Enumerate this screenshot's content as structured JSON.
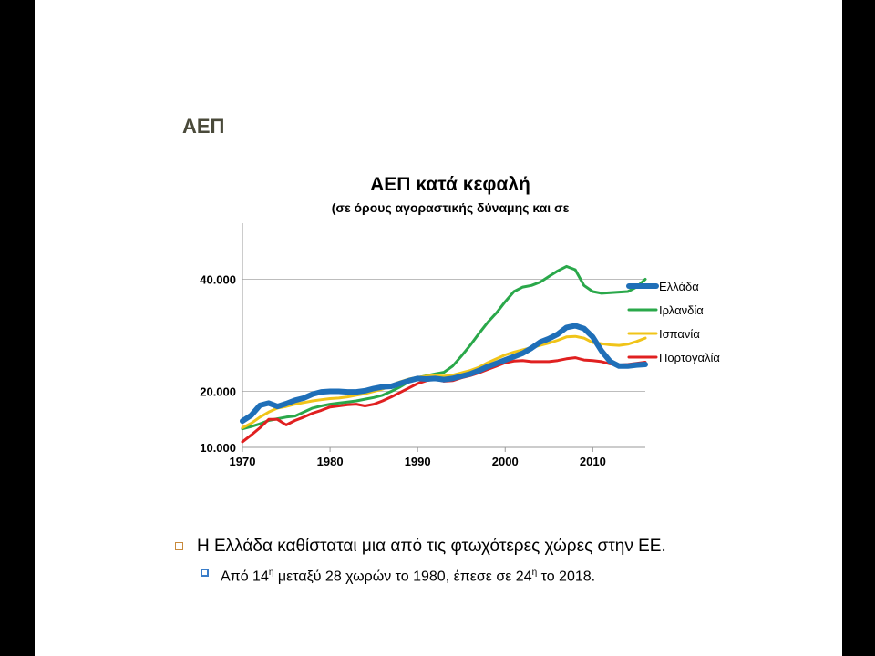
{
  "slide": {
    "title": "ΑΕΠ",
    "bullet_main": "Η Ελλάδα καθίσταται μια από τις φτωχότερες χώρες στην ΕΕ.",
    "bullet_sub": {
      "part1": "Από 14",
      "sup1": "η",
      "part2": " μεταξύ 28 χωρών το 1980, έπεσε σε 24",
      "sup2": "η",
      "part3": " το 2018."
    },
    "colors": {
      "page_bg": "#000000",
      "slide_bg": "#ffffff",
      "bullet_main": "#c8893b",
      "bullet_sub": "#3a7dc9"
    }
  },
  "chart_data": {
    "type": "line",
    "title": "ΑΕΠ κατά κεφαλή",
    "subtitle": "(σε όρους αγοραστικής δύναμης και σε",
    "xlim": [
      1970,
      2016
    ],
    "ylim": [
      10000,
      50000
    ],
    "x_ticks": [
      1970,
      1980,
      1990,
      2000,
      2010
    ],
    "x_tick_labels": [
      "1970",
      "1980",
      "1990",
      "2000",
      "2010"
    ],
    "y_ticks": [
      10000,
      20000,
      40000
    ],
    "y_tick_labels": [
      "10.000",
      "20.000",
      "40.000"
    ],
    "gridlines_y": [
      20000,
      40000
    ],
    "legend_position": "right",
    "x": [
      1970,
      1971,
      1972,
      1973,
      1974,
      1975,
      1976,
      1977,
      1978,
      1979,
      1980,
      1981,
      1982,
      1983,
      1984,
      1985,
      1986,
      1987,
      1988,
      1989,
      1990,
      1991,
      1992,
      1993,
      1994,
      1995,
      1996,
      1997,
      1998,
      1999,
      2000,
      2001,
      2002,
      2003,
      2004,
      2005,
      2006,
      2007,
      2008,
      2009,
      2010,
      2011,
      2012,
      2013,
      2014,
      2015,
      2016
    ],
    "series": [
      {
        "name": "Ελλάδα",
        "color": "#1f6fb8",
        "width": 6,
        "values": [
          14700,
          15700,
          17500,
          17900,
          17300,
          17800,
          18400,
          18800,
          19500,
          19900,
          20000,
          20000,
          19900,
          19900,
          20100,
          20500,
          20800,
          20900,
          21400,
          21900,
          22300,
          22200,
          22300,
          22100,
          22300,
          22700,
          23100,
          23700,
          24400,
          25000,
          25600,
          26200,
          26800,
          27700,
          28800,
          29400,
          30200,
          31400,
          31700,
          31200,
          29700,
          27200,
          25300,
          24500,
          24500,
          24700,
          24800
        ]
      },
      {
        "name": "Ιρλανδία",
        "color": "#2aa84a",
        "width": 3,
        "values": [
          13300,
          13700,
          14200,
          14800,
          15100,
          15400,
          15600,
          16300,
          17000,
          17400,
          17700,
          17900,
          18100,
          18300,
          18600,
          18900,
          19300,
          20000,
          20800,
          21700,
          22400,
          22800,
          23100,
          23400,
          24500,
          26300,
          28200,
          30300,
          32300,
          34000,
          36000,
          37800,
          38600,
          38900,
          39500,
          40500,
          41500,
          42300,
          41700,
          38900,
          37800,
          37500,
          37600,
          37700,
          37800,
          38600,
          40000
        ]
      },
      {
        "name": "Ισπανία",
        "color": "#f0c419",
        "width": 3,
        "values": [
          13500,
          14300,
          15400,
          16300,
          17000,
          17300,
          17700,
          18000,
          18300,
          18500,
          18700,
          18800,
          19000,
          19300,
          19600,
          20000,
          20400,
          21100,
          21700,
          22200,
          22500,
          22700,
          22800,
          22700,
          22900,
          23300,
          23700,
          24300,
          25100,
          25800,
          26500,
          27000,
          27400,
          27800,
          28200,
          28600,
          29100,
          29700,
          29800,
          29500,
          28700,
          28500,
          28300,
          28200,
          28400,
          28900,
          29500
        ]
      },
      {
        "name": "Πορτογαλία",
        "color": "#e02020",
        "width": 3,
        "values": [
          11000,
          12200,
          13500,
          15000,
          15000,
          14000,
          14800,
          15400,
          16100,
          16600,
          17200,
          17400,
          17600,
          17700,
          17400,
          17700,
          18300,
          19000,
          19800,
          20600,
          21400,
          21900,
          22200,
          21800,
          21900,
          22400,
          22800,
          23300,
          23900,
          24500,
          25100,
          25400,
          25500,
          25300,
          25300,
          25300,
          25500,
          25800,
          26000,
          25600,
          25500,
          25300,
          24900,
          24700,
          24800,
          25000,
          25200
        ]
      }
    ]
  }
}
